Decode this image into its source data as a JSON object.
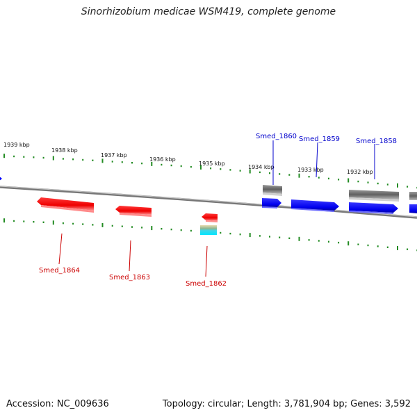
{
  "title": "Sinorhizobium medicae WSM419, complete genome",
  "footer": {
    "accession": "Accession: NC_009636",
    "topology": "Topology: circular; Length: 3,781,904 bp; Genes: 3,592"
  },
  "colors": {
    "forward_gene": "#0000ff",
    "reverse_gene": "#ff0000",
    "gene_label_forward": "#0000cc",
    "gene_label_reverse": "#cc0000",
    "other_feature": "#707070",
    "tick": "#228b22",
    "backbone": "#888888"
  },
  "scale_labels": [
    "1939 kbp",
    "1938 kbp",
    "1937 kbp",
    "1936 kbp",
    "1935 kbp",
    "1934 kbp",
    "1933 kbp",
    "1932 kbp"
  ],
  "gene_labels": {
    "top": [
      "Smed_1860",
      "Smed_1859",
      "Smed_1858"
    ],
    "bottom": [
      "Smed_1864",
      "Smed_1863",
      "Smed_1862"
    ]
  }
}
